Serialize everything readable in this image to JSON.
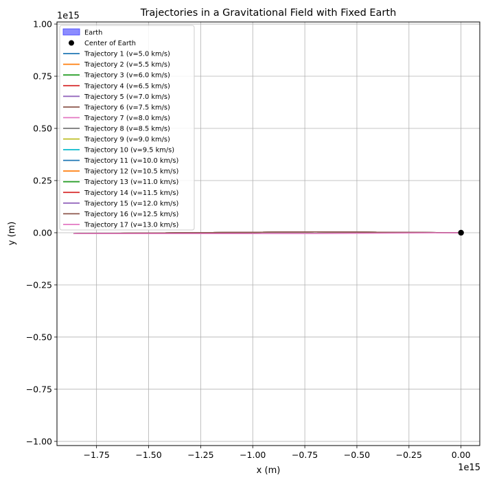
{
  "chart_data": {
    "type": "line",
    "title": "Trajectories in a Gravitational Field with Fixed Earth",
    "xlabel": "x (m)",
    "ylabel": "y (m)",
    "x_offset_label": "1e15",
    "y_offset_label": "1e15",
    "xlim": [
      -1.94,
      0.09
    ],
    "ylim": [
      -1.02,
      1.01
    ],
    "x_ticks": [
      -1.75,
      -1.5,
      -1.25,
      -1.0,
      -0.75,
      -0.5,
      -0.25,
      0.0
    ],
    "x_tick_labels": [
      "−1.75",
      "−1.50",
      "−1.25",
      "−1.00",
      "−0.75",
      "−0.50",
      "−0.25",
      "0.00"
    ],
    "y_ticks": [
      -1.0,
      -0.75,
      -0.5,
      -0.25,
      0.0,
      0.25,
      0.5,
      0.75,
      1.0
    ],
    "y_tick_labels": [
      "−1.00",
      "−0.75",
      "−0.50",
      "−0.25",
      "0.00",
      "0.25",
      "0.50",
      "0.75",
      "1.00"
    ],
    "grid": true,
    "legend_position": "upper-left",
    "earth": {
      "label": "Earth",
      "color": "#8080ff",
      "edge_color": "#4040ff"
    },
    "center": {
      "label": "Center of Earth",
      "x": 0.0,
      "y": 0.0,
      "color": "#000000"
    },
    "series": [
      {
        "name": "Trajectory 1 (v=5.0 km/s)",
        "color": "#1f77b4",
        "x": [
          0.0,
          -0.7,
          -1.86
        ],
        "y": [
          0.0,
          0.004,
          -0.004
        ]
      },
      {
        "name": "Trajectory 2 (v=5.5 km/s)",
        "color": "#ff7f0e",
        "x": [
          0.0,
          -0.7,
          -1.86
        ],
        "y": [
          0.0,
          0.004,
          -0.004
        ]
      },
      {
        "name": "Trajectory 3 (v=6.0 km/s)",
        "color": "#2ca02c",
        "x": [
          0.0,
          -0.7,
          -1.86
        ],
        "y": [
          0.0,
          0.004,
          -0.004
        ]
      },
      {
        "name": "Trajectory 4 (v=6.5 km/s)",
        "color": "#d62728",
        "x": [
          0.0,
          -0.7,
          -1.86
        ],
        "y": [
          0.0,
          0.004,
          -0.004
        ]
      },
      {
        "name": "Trajectory 5 (v=7.0 km/s)",
        "color": "#9467bd",
        "x": [
          0.0,
          -0.7,
          -1.86
        ],
        "y": [
          0.0,
          0.004,
          -0.004
        ]
      },
      {
        "name": "Trajectory 6 (v=7.5 km/s)",
        "color": "#8c564b",
        "x": [
          0.0,
          -0.7,
          -1.86
        ],
        "y": [
          0.0,
          0.004,
          -0.004
        ]
      },
      {
        "name": "Trajectory 7 (v=8.0 km/s)",
        "color": "#e377c2",
        "x": [
          0.0,
          -0.7,
          -1.86
        ],
        "y": [
          0.0,
          0.004,
          -0.004
        ]
      },
      {
        "name": "Trajectory 8 (v=8.5 km/s)",
        "color": "#7f7f7f",
        "x": [
          0.0,
          -0.7,
          -1.86
        ],
        "y": [
          0.0,
          0.004,
          -0.004
        ]
      },
      {
        "name": "Trajectory 9 (v=9.0 km/s)",
        "color": "#bcbd22",
        "x": [
          0.0,
          -0.7,
          -1.86
        ],
        "y": [
          0.0,
          0.004,
          -0.004
        ]
      },
      {
        "name": "Trajectory 10 (v=9.5 km/s)",
        "color": "#17becf",
        "x": [
          0.0,
          -0.7,
          -1.86
        ],
        "y": [
          0.0,
          0.004,
          -0.004
        ]
      },
      {
        "name": "Trajectory 11 (v=10.0 km/s)",
        "color": "#1f77b4",
        "x": [
          0.0,
          -0.7,
          -1.86
        ],
        "y": [
          0.0,
          0.004,
          -0.004
        ]
      },
      {
        "name": "Trajectory 12 (v=10.5 km/s)",
        "color": "#ff7f0e",
        "x": [
          0.0,
          -0.7,
          -1.86
        ],
        "y": [
          0.0,
          0.004,
          -0.004
        ]
      },
      {
        "name": "Trajectory 13 (v=11.0 km/s)",
        "color": "#2ca02c",
        "x": [
          0.0,
          -0.7,
          -1.86
        ],
        "y": [
          0.0,
          0.004,
          -0.004
        ]
      },
      {
        "name": "Trajectory 14 (v=11.5 km/s)",
        "color": "#d62728",
        "x": [
          0.0,
          -0.7,
          -1.86
        ],
        "y": [
          0.0,
          0.004,
          -0.004
        ]
      },
      {
        "name": "Trajectory 15 (v=12.0 km/s)",
        "color": "#9467bd",
        "x": [
          0.0,
          -0.7,
          -1.86
        ],
        "y": [
          0.0,
          0.004,
          -0.004
        ]
      },
      {
        "name": "Trajectory 16 (v=12.5 km/s)",
        "color": "#8c564b",
        "x": [
          0.0,
          -0.7,
          -1.86
        ],
        "y": [
          0.0,
          0.004,
          -0.004
        ]
      },
      {
        "name": "Trajectory 17 (v=13.0 km/s)",
        "color": "#e377c2",
        "x": [
          0.0,
          -0.7,
          -1.86
        ],
        "y": [
          0.0,
          -0.004,
          -0.004
        ]
      }
    ]
  }
}
